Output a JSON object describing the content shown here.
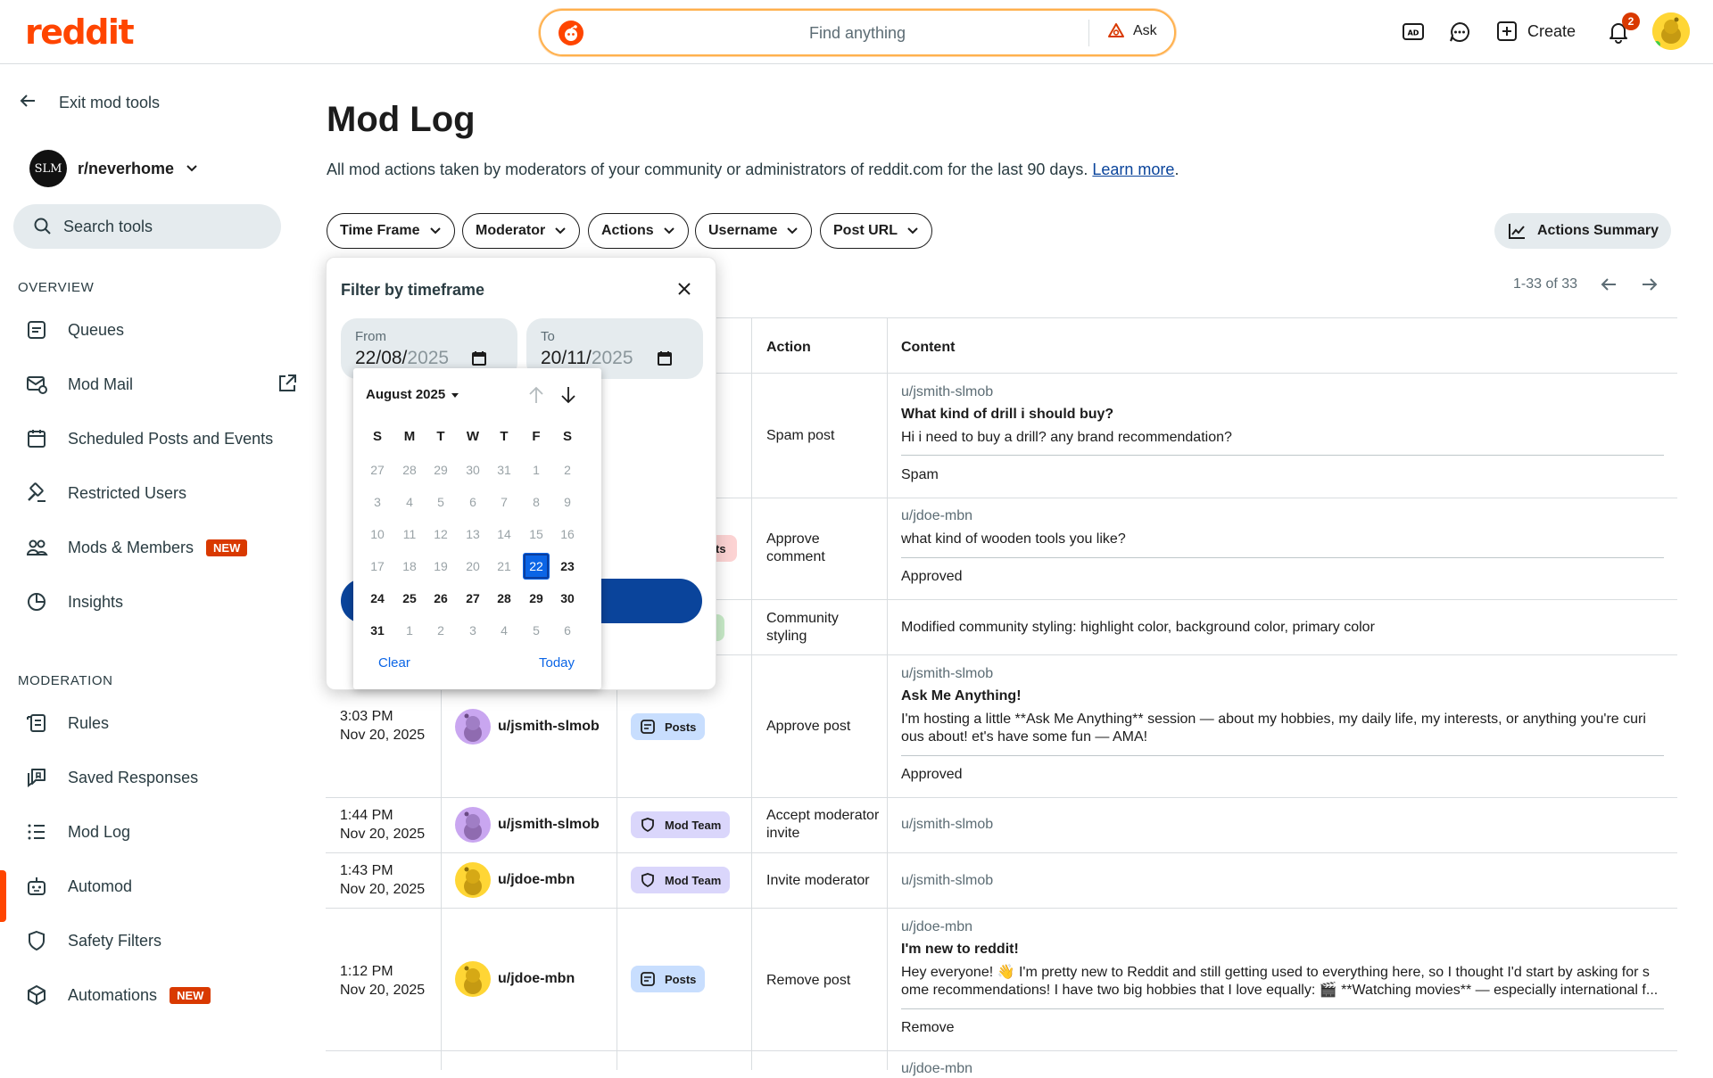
{
  "brand": {
    "logo_text": "reddit",
    "accent": "#ff4500",
    "link_blue": "#0a449b"
  },
  "topbar": {
    "search_placeholder": "Find anything",
    "ask_label": "Ask",
    "create_label": "Create",
    "notification_count": "2",
    "icons": [
      "advertise-icon",
      "chat-icon",
      "create-icon",
      "notification-bell-icon",
      "user-avatar"
    ]
  },
  "sidebar": {
    "exit_label": "Exit mod tools",
    "community": {
      "name": "r/neverhome",
      "avatar_text": "SLM"
    },
    "search_placeholder": "Search tools",
    "overview_heading": "OVERVIEW",
    "overview_items": [
      {
        "label": "Queues",
        "icon": "queue-icon"
      },
      {
        "label": "Mod Mail",
        "icon": "modmail-icon"
      },
      {
        "label": "Scheduled Posts and Events",
        "icon": "calendar-icon"
      },
      {
        "label": "Restricted Users",
        "icon": "gavel-icon"
      },
      {
        "label": "Mods & Members",
        "icon": "members-icon",
        "badge": "NEW"
      },
      {
        "label": "Insights",
        "icon": "insights-icon"
      }
    ],
    "moderation_heading": "MODERATION",
    "moderation_items": [
      {
        "label": "Rules",
        "icon": "rules-icon"
      },
      {
        "label": "Saved Responses",
        "icon": "saved-responses-icon"
      },
      {
        "label": "Mod Log",
        "icon": "list-icon",
        "active": true
      },
      {
        "label": "Automod",
        "icon": "automod-icon"
      },
      {
        "label": "Safety Filters",
        "icon": "shield-icon"
      },
      {
        "label": "Automations",
        "icon": "cube-icon",
        "badge": "NEW"
      }
    ]
  },
  "main": {
    "title": "Mod Log",
    "description": "All mod actions taken by moderators of your community or administrators of reddit.com for the last 90 days.",
    "learn_more": "Learn more",
    "filters": [
      "Time Frame",
      "Moderator",
      "Actions",
      "Username",
      "Post URL"
    ],
    "actions_summary": "Actions Summary",
    "pagination": "1-33 of 33",
    "columns": {
      "action": "Action",
      "content": "Content"
    }
  },
  "rows": [
    {
      "action": "Spam post",
      "author": "u/jsmith-slmob",
      "title": "What kind of drill i should buy?",
      "body": "Hi i need to buy a drill? any brand recommendation?",
      "status": "Spam"
    },
    {
      "action": "Approve comment",
      "author": "u/jdoe-mbn",
      "body": "what kind of wooden tools you like?",
      "status": "Approved",
      "pill_partial": "ts"
    },
    {
      "action": "Community styling",
      "content": "Modified community styling: highlight color, background color, primary color"
    },
    {
      "time": "3:03 PM",
      "date": "Nov 20, 2025",
      "user": "u/jsmith-slmob",
      "pill": "Posts",
      "action": "Approve post",
      "author": "u/jsmith-slmob",
      "title": "Ask Me Anything!",
      "body1": "I'm hosting a little **Ask Me Anything** session — about my hobbies, my daily life, my interests, or anything you're curi",
      "body2": "ous about! et's have some fun — AMA!",
      "status": "Approved"
    },
    {
      "time": "1:44 PM",
      "date": "Nov 20, 2025",
      "user": "u/jsmith-slmob",
      "pill": "Mod Team",
      "action": "Accept moderator invite",
      "content": "u/jsmith-slmob"
    },
    {
      "time": "1:43 PM",
      "date": "Nov 20, 2025",
      "user": "u/jdoe-mbn",
      "pill": "Mod Team",
      "action": "Invite moderator",
      "content": "u/jsmith-slmob"
    },
    {
      "time": "1:12 PM",
      "date": "Nov 20, 2025",
      "user": "u/jdoe-mbn",
      "pill": "Posts",
      "action": "Remove post",
      "author": "u/jdoe-mbn",
      "title": "I'm new to reddit!",
      "body1": "Hey everyone! 👋 I'm pretty new to Reddit and still getting used to everything here, so I thought I'd start by asking for s",
      "body2": "ome recommendations! I have two big hobbies that I love equally: 🎬 **Watching movies** — especially international f...",
      "status": "Remove"
    },
    {
      "author": "u/jdoe-mbn"
    }
  ],
  "timeframe_popover": {
    "title": "Filter by timeframe",
    "from_label": "From",
    "from_value_main": "22/08/",
    "from_value_dim": "2025",
    "to_label": "To",
    "to_value_main": "20/11/",
    "to_value_dim": "2025"
  },
  "calendar": {
    "month": "August 2025",
    "weekdays": [
      "S",
      "M",
      "T",
      "W",
      "T",
      "F",
      "S"
    ],
    "weeks": [
      [
        "27",
        "28",
        "29",
        "30",
        "31",
        "1",
        "2"
      ],
      [
        "3",
        "4",
        "5",
        "6",
        "7",
        "8",
        "9"
      ],
      [
        "10",
        "11",
        "12",
        "13",
        "14",
        "15",
        "16"
      ],
      [
        "17",
        "18",
        "19",
        "20",
        "21",
        "22",
        "23"
      ],
      [
        "24",
        "25",
        "26",
        "27",
        "28",
        "29",
        "30"
      ],
      [
        "31",
        "1",
        "2",
        "3",
        "4",
        "5",
        "6"
      ]
    ],
    "selected": "22",
    "clear_label": "Clear",
    "today_label": "Today"
  }
}
